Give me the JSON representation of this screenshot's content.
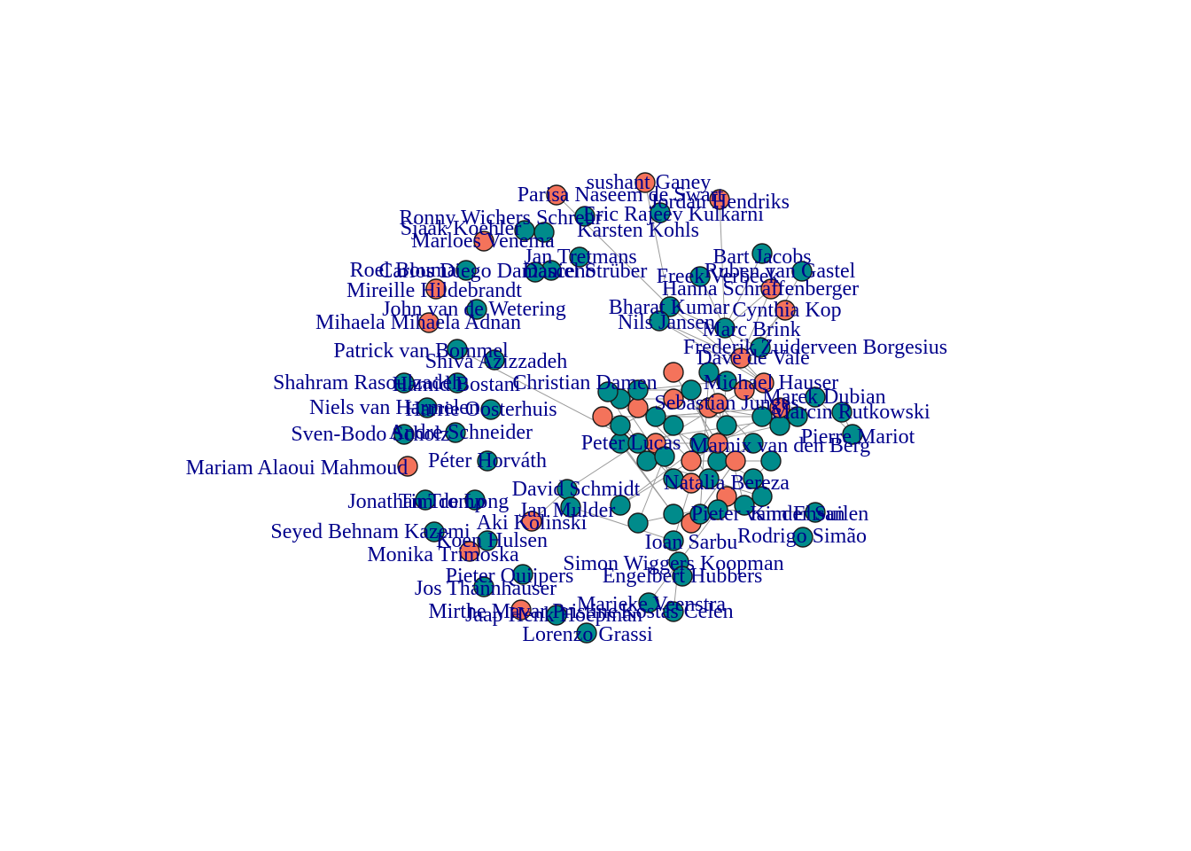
{
  "colors": {
    "org_a": "#008b8b",
    "org_b": "#f4735b",
    "label": "#00008b",
    "edge": "#9a9a9a",
    "outline": "#1a1a1a"
  },
  "nodes": [
    {
      "label": "sushant Ganey",
      "group": "b"
    },
    {
      "label": "Jordan Hendriks",
      "group": "b"
    },
    {
      "label": "Parisa Naseem de Swart",
      "group": "b"
    },
    {
      "label": "Ronny Wichers Schreur",
      "group": "a"
    },
    {
      "label": "Eric Rajeev Kulkarni",
      "group": "a"
    },
    {
      "label": "Sjaak Koehler",
      "group": "a"
    },
    {
      "label": "Karsten Kohls",
      "group": "a"
    },
    {
      "label": "Marloes Venema",
      "group": "b"
    },
    {
      "label": "Jan Tretmans",
      "group": "a"
    },
    {
      "label": "Bart Jacobs",
      "group": "a"
    },
    {
      "label": "Roel Bouma",
      "group": "a"
    },
    {
      "label": "Carlos Diego Damasceno",
      "group": "a"
    },
    {
      "label": "Daniel Strüber",
      "group": "a"
    },
    {
      "label": "Freek Verbeek",
      "group": "a"
    },
    {
      "label": "Ruben van Gastel",
      "group": "a"
    },
    {
      "label": "Mireille Hildebrandt",
      "group": "b"
    },
    {
      "label": "Hanna Schraffenberger",
      "group": "b"
    },
    {
      "label": "John van de Wetering",
      "group": "a"
    },
    {
      "label": "Bharat Kumar",
      "group": "a"
    },
    {
      "label": "Cynthia Kop",
      "group": "b"
    },
    {
      "label": "Mihaela Mihaela Adnan",
      "group": "b"
    },
    {
      "label": "Nils Jansen",
      "group": "a"
    },
    {
      "label": "Marc Brink",
      "group": "a"
    },
    {
      "label": "Frederik Zuiderveen Borgesius",
      "group": "a"
    },
    {
      "label": "Patrick van Bommel",
      "group": "a"
    },
    {
      "label": "Shiva Azizzadeh",
      "group": "a"
    },
    {
      "label": "Dave de Vale",
      "group": "b"
    },
    {
      "label": "Shahram Rasoulzadeh",
      "group": "a"
    },
    {
      "label": "Hamid Bostani",
      "group": "a"
    },
    {
      "label": "Christian Damen",
      "group": "a"
    },
    {
      "label": "Michael Hauser",
      "group": "b"
    },
    {
      "label": "Niels van Harmelen",
      "group": "a"
    },
    {
      "label": "Harrie Oosterhuis",
      "group": "a"
    },
    {
      "label": "Marek Dubian",
      "group": "a"
    },
    {
      "label": "Sebastian Junges",
      "group": "b"
    },
    {
      "label": "Marcin Rutkowski",
      "group": "a"
    },
    {
      "label": "Sven-Bodo Scholz",
      "group": "a"
    },
    {
      "label": "Andre Schneider",
      "group": "a"
    },
    {
      "label": "Pierre Mariot",
      "group": "a"
    },
    {
      "label": "Peter Lucas",
      "group": "a"
    },
    {
      "label": "Marnix van den Berg",
      "group": "a"
    },
    {
      "label": "Mariam Alaoui Mahmoud",
      "group": "b"
    },
    {
      "label": "Péter Horváth",
      "group": "a"
    },
    {
      "label": "Natalia Bereza",
      "group": "b"
    },
    {
      "label": "David Schmidt",
      "group": "a"
    },
    {
      "label": "Jonathan Tromp",
      "group": "a"
    },
    {
      "label": "Tim de Long",
      "group": "a"
    },
    {
      "label": "Kim Ehsan",
      "group": "a"
    },
    {
      "label": "Jan Mulder",
      "group": "a"
    },
    {
      "label": "Aki Kolinski",
      "group": "b"
    },
    {
      "label": "Pieter van der Suilen",
      "group": "a"
    },
    {
      "label": "Seyed Behnam Kazemi",
      "group": "a"
    },
    {
      "label": "Ioan Sarbu",
      "group": "a"
    },
    {
      "label": "Rodrigo Simão",
      "group": "a"
    },
    {
      "label": "Koen Hulsen",
      "group": "a"
    },
    {
      "label": "Monika Trimoska",
      "group": "b"
    },
    {
      "label": "Simon Wiggers Koopman",
      "group": "a"
    },
    {
      "label": "Pieter Quijpers",
      "group": "a"
    },
    {
      "label": "Engelbert Hubbers",
      "group": "a"
    },
    {
      "label": "Jos Thannhauser",
      "group": "a"
    },
    {
      "label": "Mirthe Mavar Pristine",
      "group": "b"
    },
    {
      "label": "Marieke Veenstra",
      "group": "a"
    },
    {
      "label": "Jaap Henk Hoepman",
      "group": "a"
    },
    {
      "label": "Kostas Celen",
      "group": "a"
    },
    {
      "label": "Lorenzo Grassi",
      "group": "a"
    }
  ]
}
